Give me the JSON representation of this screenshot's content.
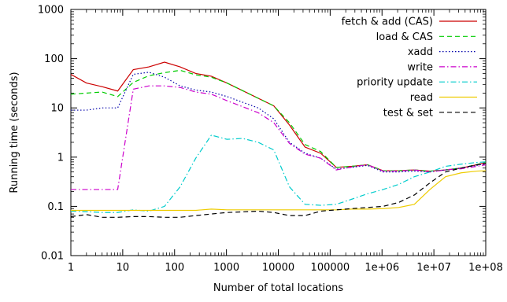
{
  "chart_data": {
    "type": "line",
    "title": "",
    "xlabel": "Number of total locations",
    "ylabel": "Running time (seconds)",
    "x_scale": "log",
    "y_scale": "log",
    "xlim": [
      1,
      100000000
    ],
    "ylim": [
      0.01,
      1000
    ],
    "grid": false,
    "legend_position": "top-right",
    "x_ticks": [
      {
        "value": 1,
        "label": "1"
      },
      {
        "value": 10,
        "label": "10"
      },
      {
        "value": 100,
        "label": "100"
      },
      {
        "value": 1000,
        "label": "1000"
      },
      {
        "value": 10000,
        "label": "10000"
      },
      {
        "value": 100000,
        "label": "100000"
      },
      {
        "value": 1000000,
        "label": "1e+06"
      },
      {
        "value": 10000000,
        "label": "1e+07"
      },
      {
        "value": 100000000,
        "label": "1e+08"
      }
    ],
    "y_ticks": [
      {
        "value": 0.01,
        "label": "0.01"
      },
      {
        "value": 0.1,
        "label": "0.1"
      },
      {
        "value": 1,
        "label": "1"
      },
      {
        "value": 10,
        "label": "10"
      },
      {
        "value": 100,
        "label": "100"
      },
      {
        "value": 1000,
        "label": "1000"
      }
    ],
    "series": [
      {
        "name": "fetch & add (CAS)",
        "color": "#cc0000",
        "dash": "solid",
        "points": [
          [
            1,
            48
          ],
          [
            2,
            32
          ],
          [
            4,
            27
          ],
          [
            8,
            22
          ],
          [
            16,
            60
          ],
          [
            32,
            68
          ],
          [
            64,
            85
          ],
          [
            128,
            68
          ],
          [
            256,
            50
          ],
          [
            512,
            44
          ],
          [
            1024,
            32
          ],
          [
            8192,
            11
          ],
          [
            16384,
            4.5
          ],
          [
            32768,
            1.6
          ],
          [
            65536,
            1.2
          ],
          [
            131072,
            0.62
          ],
          [
            262144,
            0.65
          ],
          [
            524288,
            0.7
          ],
          [
            1048576,
            0.53
          ],
          [
            2097152,
            0.53
          ],
          [
            4194304,
            0.55
          ],
          [
            8388608,
            0.52
          ],
          [
            16777216,
            0.55
          ],
          [
            33554432,
            0.6
          ],
          [
            67108864,
            0.7
          ],
          [
            100000000,
            0.78
          ]
        ]
      },
      {
        "name": "load & CAS",
        "color": "#00cc00",
        "dash": "dashed",
        "points": [
          [
            1,
            19
          ],
          [
            2,
            20
          ],
          [
            4,
            21
          ],
          [
            8,
            17
          ],
          [
            16,
            33
          ],
          [
            32,
            45
          ],
          [
            64,
            52
          ],
          [
            128,
            58
          ],
          [
            256,
            47
          ],
          [
            512,
            42
          ],
          [
            1024,
            32
          ],
          [
            8192,
            11
          ],
          [
            16384,
            5
          ],
          [
            32768,
            1.8
          ],
          [
            65536,
            1.3
          ],
          [
            131072,
            0.62
          ],
          [
            262144,
            0.65
          ],
          [
            524288,
            0.7
          ],
          [
            1048576,
            0.53
          ],
          [
            2097152,
            0.53
          ],
          [
            4194304,
            0.55
          ],
          [
            8388608,
            0.52
          ],
          [
            16777216,
            0.55
          ],
          [
            33554432,
            0.6
          ],
          [
            67108864,
            0.7
          ],
          [
            100000000,
            0.8
          ]
        ]
      },
      {
        "name": "xadd",
        "color": "#0000aa",
        "dash": "dotted",
        "points": [
          [
            1,
            9
          ],
          [
            2,
            9
          ],
          [
            4,
            10
          ],
          [
            8,
            10
          ],
          [
            16,
            48
          ],
          [
            32,
            53
          ],
          [
            64,
            42
          ],
          [
            128,
            28
          ],
          [
            256,
            23
          ],
          [
            512,
            21
          ],
          [
            1024,
            17
          ],
          [
            4096,
            10
          ],
          [
            8192,
            6
          ],
          [
            16384,
            2
          ],
          [
            32768,
            1.2
          ],
          [
            65536,
            0.95
          ],
          [
            131072,
            0.57
          ],
          [
            262144,
            0.62
          ],
          [
            524288,
            0.68
          ],
          [
            1048576,
            0.5
          ],
          [
            2097152,
            0.5
          ],
          [
            4194304,
            0.52
          ],
          [
            8388608,
            0.5
          ],
          [
            16777216,
            0.55
          ],
          [
            33554432,
            0.6
          ],
          [
            67108864,
            0.68
          ],
          [
            100000000,
            0.75
          ]
        ]
      },
      {
        "name": "write",
        "color": "#cc00cc",
        "dash": "dashdot",
        "points": [
          [
            1,
            0.22
          ],
          [
            2,
            0.22
          ],
          [
            4,
            0.22
          ],
          [
            8,
            0.22
          ],
          [
            16,
            24
          ],
          [
            32,
            28
          ],
          [
            64,
            28
          ],
          [
            128,
            26
          ],
          [
            256,
            21
          ],
          [
            512,
            19
          ],
          [
            1024,
            14
          ],
          [
            4096,
            8
          ],
          [
            8192,
            5
          ],
          [
            16384,
            1.9
          ],
          [
            32768,
            1.15
          ],
          [
            65536,
            0.95
          ],
          [
            131072,
            0.55
          ],
          [
            262144,
            0.63
          ],
          [
            524288,
            0.7
          ],
          [
            1048576,
            0.52
          ],
          [
            2097152,
            0.52
          ],
          [
            4194304,
            0.55
          ],
          [
            8388608,
            0.5
          ],
          [
            16777216,
            0.55
          ],
          [
            33554432,
            0.58
          ],
          [
            67108864,
            0.65
          ],
          [
            100000000,
            0.7
          ]
        ]
      },
      {
        "name": "priority update",
        "color": "#00cccc",
        "dash": "dashdot",
        "points": [
          [
            1,
            0.08
          ],
          [
            2,
            0.078
          ],
          [
            4,
            0.075
          ],
          [
            8,
            0.075
          ],
          [
            16,
            0.085
          ],
          [
            32,
            0.08
          ],
          [
            64,
            0.1
          ],
          [
            128,
            0.25
          ],
          [
            256,
            0.95
          ],
          [
            512,
            2.8
          ],
          [
            1024,
            2.3
          ],
          [
            2048,
            2.4
          ],
          [
            4096,
            2
          ],
          [
            8192,
            1.4
          ],
          [
            16384,
            0.25
          ],
          [
            32768,
            0.11
          ],
          [
            65536,
            0.105
          ],
          [
            131072,
            0.11
          ],
          [
            262144,
            0.14
          ],
          [
            524288,
            0.18
          ],
          [
            1048576,
            0.22
          ],
          [
            2097152,
            0.28
          ],
          [
            4194304,
            0.4
          ],
          [
            8388608,
            0.5
          ],
          [
            16777216,
            0.65
          ],
          [
            33554432,
            0.72
          ],
          [
            67108864,
            0.78
          ],
          [
            100000000,
            0.8
          ]
        ]
      },
      {
        "name": "read",
        "color": "#eecc00",
        "dash": "solid",
        "points": [
          [
            1,
            0.083
          ],
          [
            4,
            0.083
          ],
          [
            8,
            0.083
          ],
          [
            16,
            0.083
          ],
          [
            32,
            0.083
          ],
          [
            64,
            0.083
          ],
          [
            128,
            0.083
          ],
          [
            256,
            0.083
          ],
          [
            512,
            0.088
          ],
          [
            1024,
            0.085
          ],
          [
            4096,
            0.085
          ],
          [
            8192,
            0.085
          ],
          [
            16384,
            0.085
          ],
          [
            65536,
            0.085
          ],
          [
            131072,
            0.085
          ],
          [
            262144,
            0.088
          ],
          [
            524288,
            0.088
          ],
          [
            1048576,
            0.09
          ],
          [
            2097152,
            0.095
          ],
          [
            4194304,
            0.11
          ],
          [
            8388608,
            0.22
          ],
          [
            16777216,
            0.4
          ],
          [
            33554432,
            0.48
          ],
          [
            67108864,
            0.52
          ],
          [
            100000000,
            0.53
          ]
        ]
      },
      {
        "name": "test & set",
        "color": "#000000",
        "dash": "dashed",
        "points": [
          [
            1,
            0.062
          ],
          [
            2,
            0.068
          ],
          [
            4,
            0.06
          ],
          [
            8,
            0.06
          ],
          [
            16,
            0.062
          ],
          [
            32,
            0.062
          ],
          [
            64,
            0.06
          ],
          [
            128,
            0.06
          ],
          [
            256,
            0.065
          ],
          [
            512,
            0.07
          ],
          [
            1024,
            0.075
          ],
          [
            4096,
            0.08
          ],
          [
            8192,
            0.075
          ],
          [
            16384,
            0.065
          ],
          [
            32768,
            0.065
          ],
          [
            65536,
            0.08
          ],
          [
            131072,
            0.085
          ],
          [
            262144,
            0.09
          ],
          [
            524288,
            0.095
          ],
          [
            1048576,
            0.1
          ],
          [
            2097152,
            0.12
          ],
          [
            4194304,
            0.17
          ],
          [
            8388608,
            0.3
          ],
          [
            16777216,
            0.5
          ],
          [
            33554432,
            0.6
          ],
          [
            67108864,
            0.7
          ],
          [
            100000000,
            0.75
          ]
        ]
      }
    ]
  }
}
